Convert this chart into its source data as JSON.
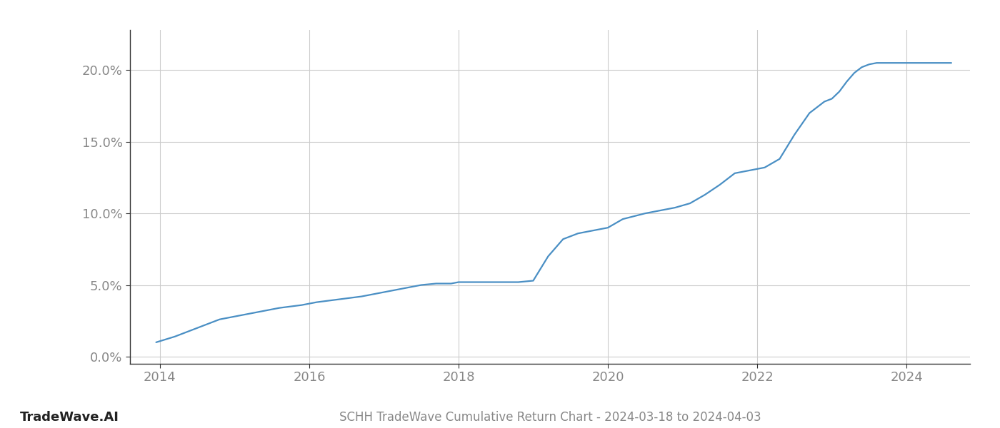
{
  "title": "SCHH TradeWave Cumulative Return Chart - 2024-03-18 to 2024-04-03",
  "watermark": "TradeWave.AI",
  "line_color": "#4a8fc4",
  "background_color": "#ffffff",
  "grid_color": "#cccccc",
  "x_years": [
    2014,
    2016,
    2018,
    2020,
    2022,
    2024
  ],
  "y_ticks": [
    0.0,
    0.05,
    0.1,
    0.15,
    0.2
  ],
  "y_tick_labels": [
    "0.0%",
    "5.0%",
    "10.0%",
    "15.0%",
    "20.0%"
  ],
  "xlim_start": 2013.6,
  "xlim_end": 2024.85,
  "ylim_min": -0.005,
  "ylim_max": 0.228,
  "data_x": [
    2013.95,
    2014.2,
    2014.4,
    2014.6,
    2014.8,
    2015.0,
    2015.3,
    2015.6,
    2015.9,
    2016.1,
    2016.4,
    2016.7,
    2016.9,
    2017.1,
    2017.3,
    2017.5,
    2017.7,
    2017.9,
    2018.0,
    2018.2,
    2018.4,
    2018.6,
    2018.8,
    2019.0,
    2019.2,
    2019.4,
    2019.6,
    2019.8,
    2020.0,
    2020.2,
    2020.5,
    2020.7,
    2020.9,
    2021.1,
    2021.3,
    2021.5,
    2021.7,
    2021.9,
    2022.1,
    2022.3,
    2022.5,
    2022.7,
    2022.9,
    2023.0,
    2023.1,
    2023.2,
    2023.3,
    2023.4,
    2023.5,
    2023.6,
    2023.7,
    2023.8,
    2023.9,
    2024.0,
    2024.2,
    2024.4,
    2024.6
  ],
  "data_y": [
    0.01,
    0.014,
    0.018,
    0.022,
    0.026,
    0.028,
    0.031,
    0.034,
    0.036,
    0.038,
    0.04,
    0.042,
    0.044,
    0.046,
    0.048,
    0.05,
    0.051,
    0.051,
    0.052,
    0.052,
    0.052,
    0.052,
    0.052,
    0.053,
    0.07,
    0.082,
    0.086,
    0.088,
    0.09,
    0.096,
    0.1,
    0.102,
    0.104,
    0.107,
    0.113,
    0.12,
    0.128,
    0.13,
    0.132,
    0.138,
    0.155,
    0.17,
    0.178,
    0.18,
    0.185,
    0.192,
    0.198,
    0.202,
    0.204,
    0.205,
    0.205,
    0.205,
    0.205,
    0.205,
    0.205,
    0.205,
    0.205
  ],
  "line_width": 1.6,
  "tick_color": "#888888",
  "spine_color": "#333333",
  "tick_fontsize": 13,
  "title_fontsize": 12,
  "watermark_fontsize": 13
}
